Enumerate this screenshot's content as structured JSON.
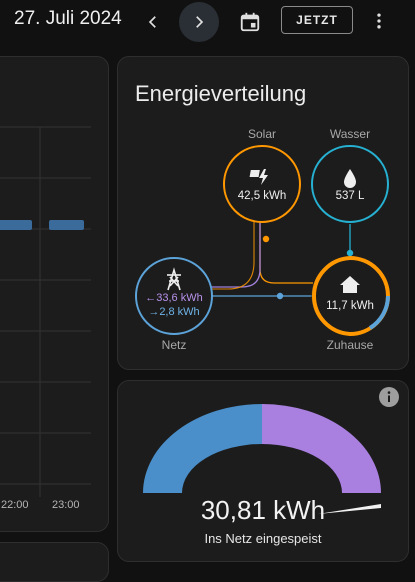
{
  "header": {
    "date": "27. Juli 2024",
    "now_label": "JETZT"
  },
  "chart_left": {
    "x_ticks": [
      "22:00",
      "23:00"
    ]
  },
  "energy": {
    "title": "Energieverteilung",
    "solar": {
      "label": "Solar",
      "value": "42,5 kWh",
      "color": "#ff9800"
    },
    "water": {
      "label": "Wasser",
      "value": "537 L",
      "color": "#26b0d1"
    },
    "grid": {
      "label": "Netz",
      "import": "←33,6 kWh",
      "export": "→2,8 kWh",
      "import_color": "#a280db",
      "export_color": "#5ca3d9"
    },
    "home": {
      "label": "Zuhause",
      "value": "11,7 kWh"
    }
  },
  "gauge": {
    "value": "30,81 kWh",
    "label": "Ins Netz eingespeist",
    "fill_fraction": 0.5,
    "colors": {
      "left": "#4a8fc9",
      "right": "#a97fe0"
    }
  }
}
